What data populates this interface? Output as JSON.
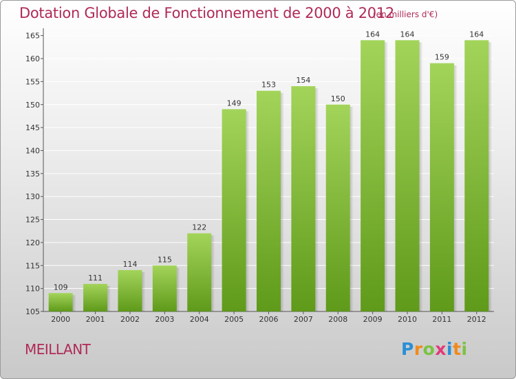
{
  "chart_data": {
    "type": "bar",
    "title": "Dotation Globale de Fonctionnement de 2000 à 2012",
    "subtitle": "(en milliers d'€)",
    "categories": [
      "2000",
      "2001",
      "2002",
      "2003",
      "2004",
      "2005",
      "2006",
      "2007",
      "2008",
      "2009",
      "2010",
      "2011",
      "2012"
    ],
    "values": [
      109,
      111,
      114,
      115,
      122,
      149,
      153,
      154,
      150,
      164,
      164,
      159,
      164
    ],
    "ylim": [
      105,
      166
    ],
    "yticks": [
      105,
      110,
      115,
      120,
      125,
      130,
      135,
      140,
      145,
      150,
      155,
      160,
      165
    ],
    "xlabel": "",
    "ylabel": "",
    "grid": true,
    "bar_color_top": "#a3d45a",
    "bar_color_bottom": "#5f9a1a"
  },
  "commune": "MEILLANT",
  "brand": {
    "name": "Proxiti",
    "letters": [
      {
        "char": "P",
        "color": "#2a8ed6"
      },
      {
        "char": "r",
        "color": "#f08a1c"
      },
      {
        "char": "o",
        "color": "#7cc242"
      },
      {
        "char": "x",
        "color": "#e23a7a"
      },
      {
        "char": "i",
        "color": "#2a8ed6"
      },
      {
        "char": "t",
        "color": "#f08a1c"
      },
      {
        "char": "i",
        "color": "#7cc242"
      }
    ]
  }
}
